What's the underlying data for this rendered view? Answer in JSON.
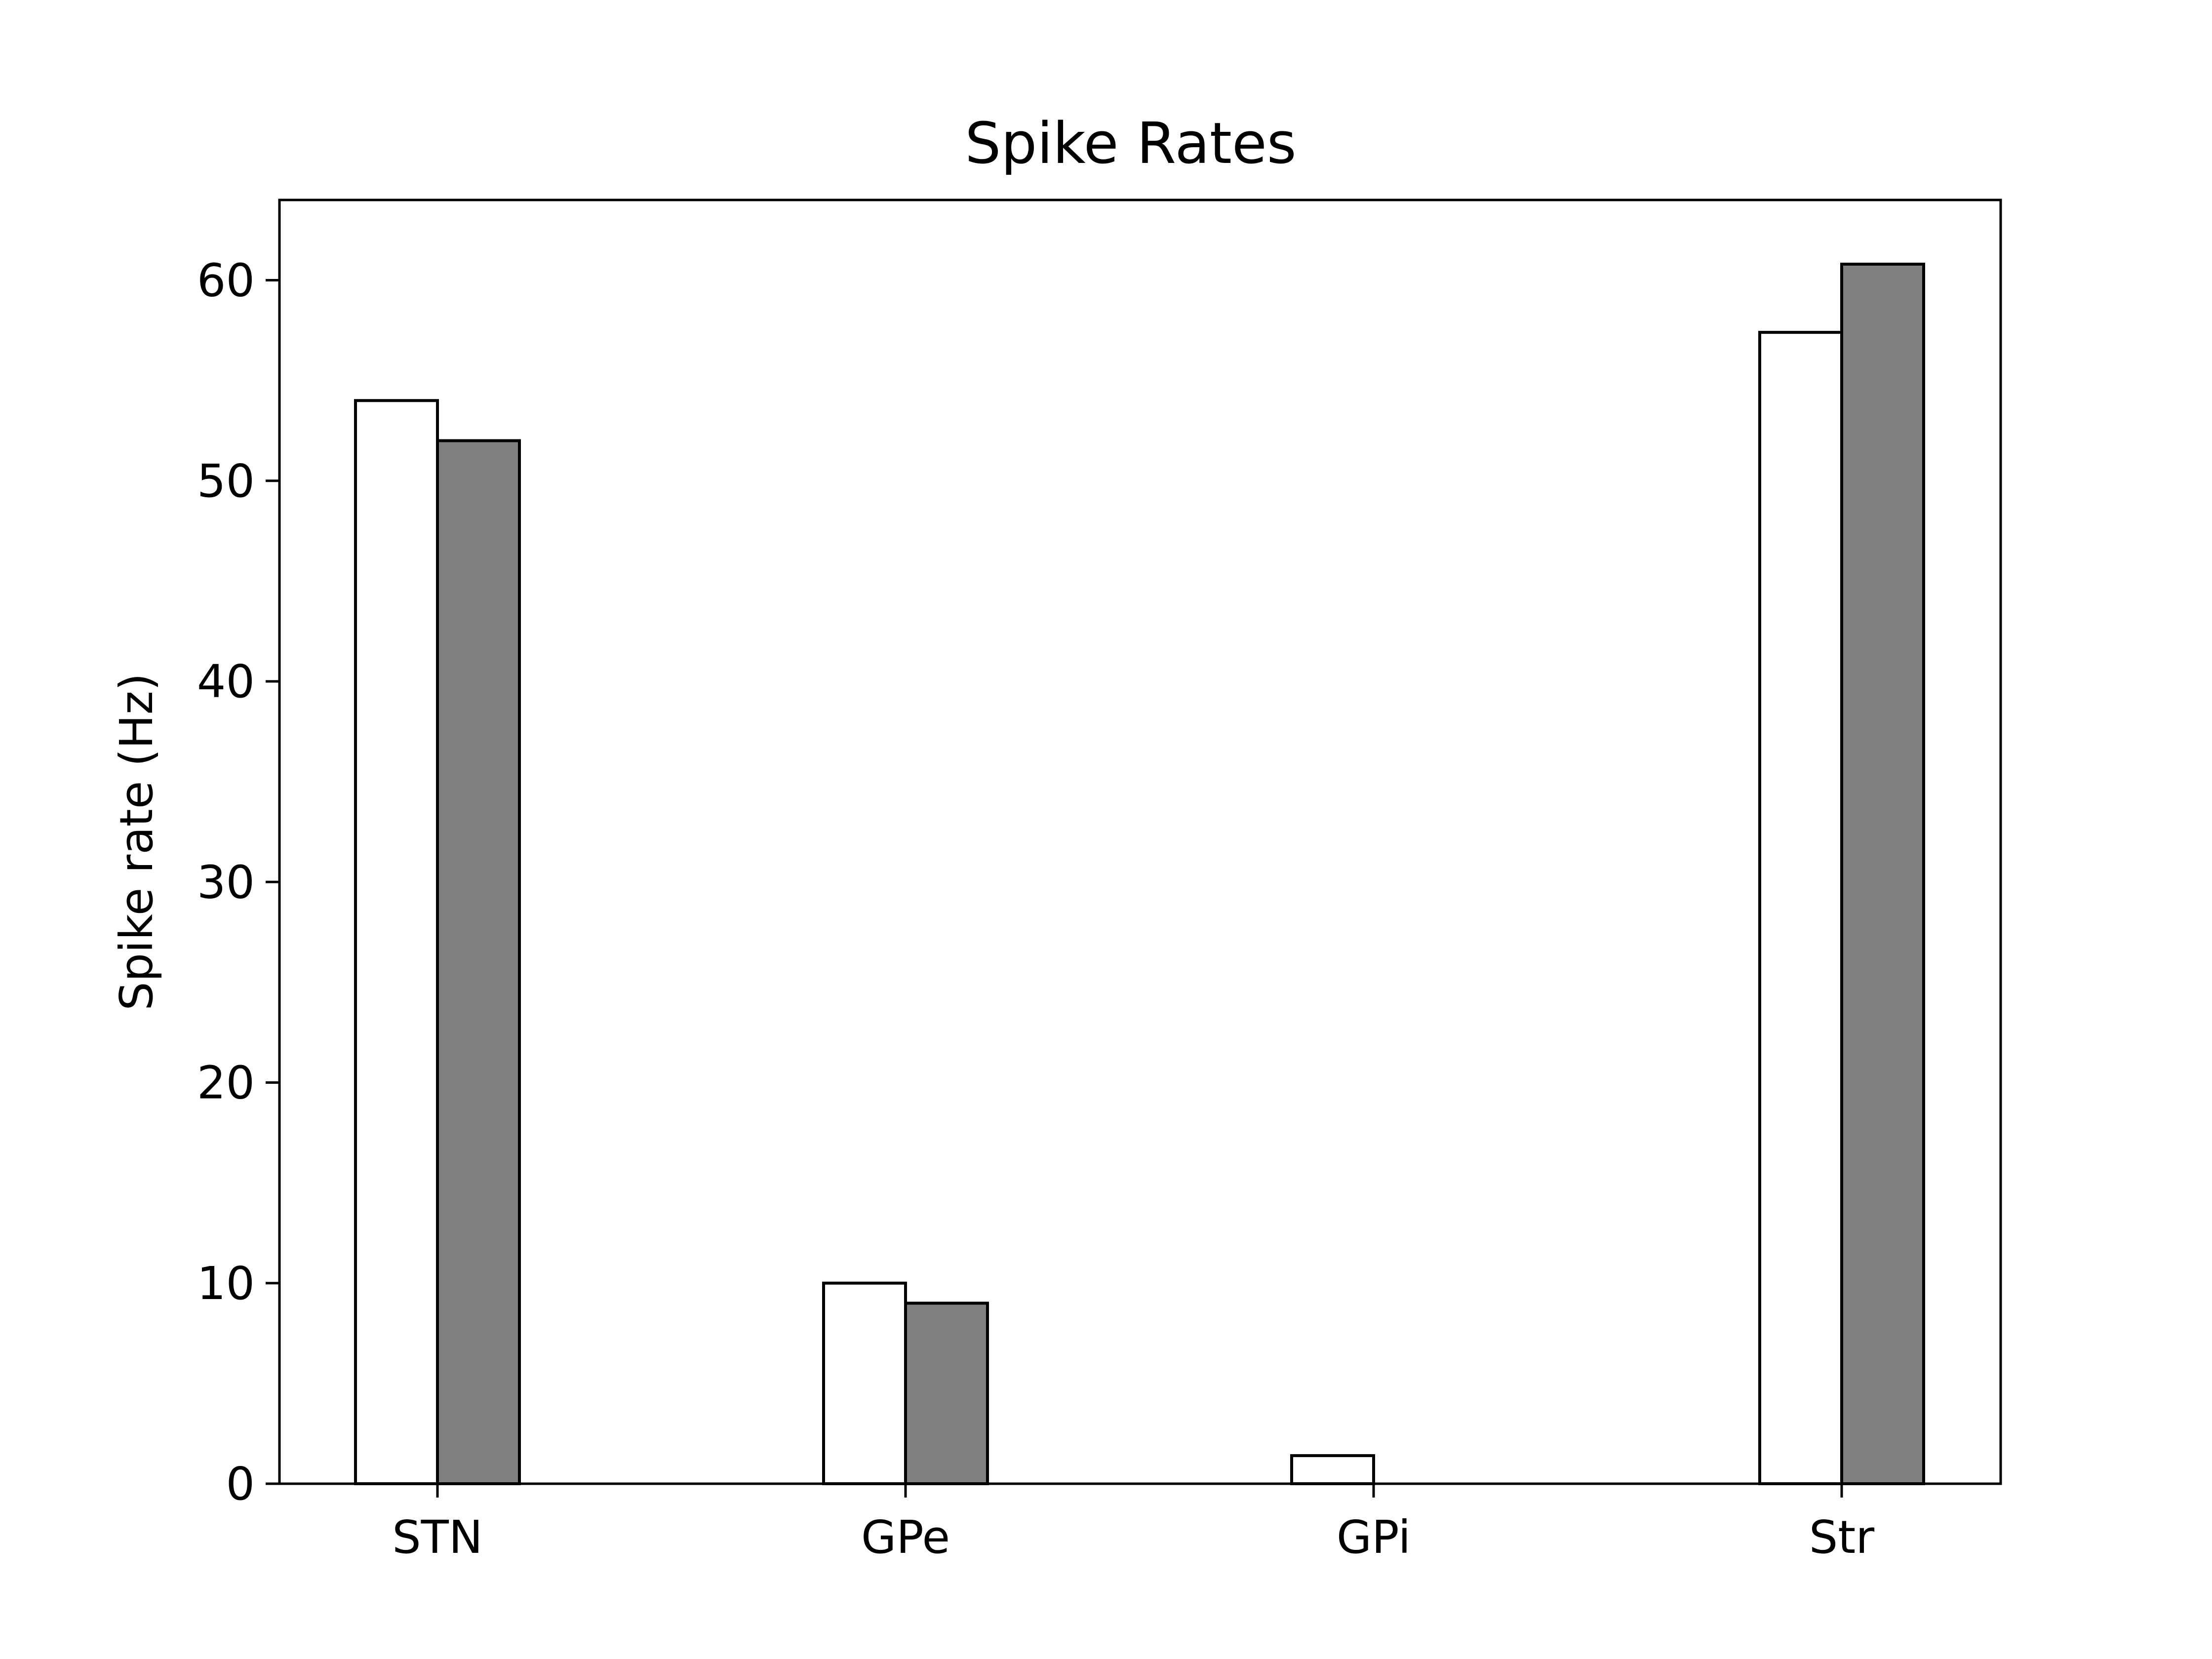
{
  "chart_data": {
    "type": "bar",
    "title": "Spike Rates",
    "xlabel": "",
    "ylabel": "Spike rate (Hz)",
    "categories": [
      "STN",
      "GPe",
      "GPi",
      "Str"
    ],
    "series": [
      {
        "values": [
          54.0,
          10.0,
          1.4,
          57.4
        ],
        "color": "#ffffff"
      },
      {
        "values": [
          52.0,
          9.0,
          0.0,
          60.8
        ],
        "color": "#808080"
      }
    ],
    "ylim": [
      0,
      64
    ],
    "yticks": [
      0,
      10,
      20,
      30,
      40,
      50,
      60
    ],
    "grid": false,
    "legend": "none",
    "edge_color": "#000000"
  }
}
